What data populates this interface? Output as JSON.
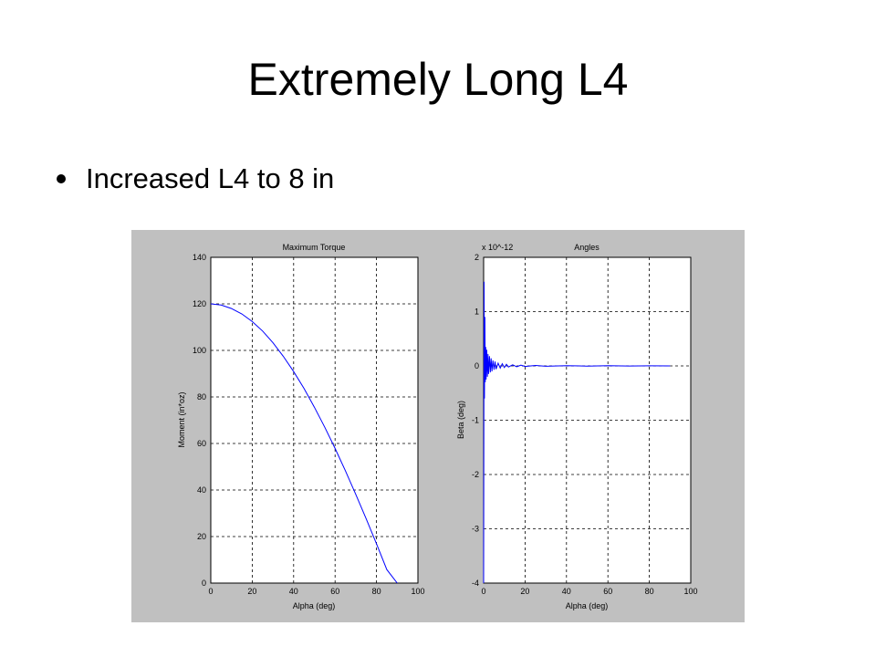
{
  "slide": {
    "title": "Extremely Long L4",
    "bullets": [
      "Increased L4 to 8 in"
    ]
  },
  "chart_data": [
    {
      "type": "line",
      "title": "Maximum Torque",
      "xlabel": "Alpha (deg)",
      "ylabel": "Moment (in*oz)",
      "xlim": [
        0,
        100
      ],
      "ylim": [
        0,
        140
      ],
      "xticks": [
        0,
        20,
        40,
        60,
        80,
        100
      ],
      "yticks": [
        0,
        20,
        40,
        60,
        80,
        100,
        120,
        140
      ],
      "grid": true,
      "line_color": "#0000ff",
      "series": [
        {
          "x": [
            0,
            5,
            10,
            15,
            20,
            25,
            30,
            35,
            40,
            45,
            50,
            55,
            60,
            65,
            70,
            75,
            80,
            85,
            90
          ],
          "y": [
            120,
            119.5,
            118,
            115.7,
            112.4,
            108.3,
            103.3,
            97.5,
            90.9,
            83.6,
            75.6,
            67,
            57.9,
            48.2,
            38.1,
            27.6,
            16.9,
            5.8,
            -5.6
          ]
        }
      ]
    },
    {
      "type": "line",
      "title": "Angles",
      "xlabel": "Alpha (deg)",
      "ylabel": "Beta (deg)",
      "y_scale_factor": "x 10^-12",
      "xlim": [
        0,
        100
      ],
      "ylim": [
        -4,
        2
      ],
      "xticks": [
        0,
        20,
        40,
        60,
        80,
        100
      ],
      "yticks": [
        -4,
        -3,
        -2,
        -1,
        0,
        1,
        2
      ],
      "grid": true,
      "line_color": "#0000ff",
      "series": [
        {
          "x": [
            0,
            0.2,
            0.4,
            0.6,
            0.8,
            1.0,
            1.2,
            1.5,
            1.8,
            2.1,
            2.4,
            2.8,
            3.2,
            3.6,
            4.0,
            4.5,
            5.0,
            5.5,
            6.0,
            7.0,
            8.0,
            9.0,
            10,
            11,
            12,
            14,
            16,
            18,
            20,
            25,
            30,
            40,
            50,
            60,
            70,
            80,
            90
          ],
          "y": [
            -4.0,
            1.55,
            -0.6,
            0.9,
            -0.3,
            0.35,
            -0.25,
            0.3,
            -0.2,
            0.22,
            -0.15,
            0.18,
            -0.12,
            0.14,
            -0.1,
            0.1,
            -0.07,
            0.08,
            -0.06,
            0.05,
            -0.04,
            0.04,
            -0.03,
            0.03,
            -0.02,
            0.02,
            -0.015,
            0.015,
            -0.01,
            0.008,
            -0.006,
            0.005,
            -0.004,
            0.003,
            -0.002,
            0.002,
            0.0
          ]
        }
      ]
    }
  ]
}
